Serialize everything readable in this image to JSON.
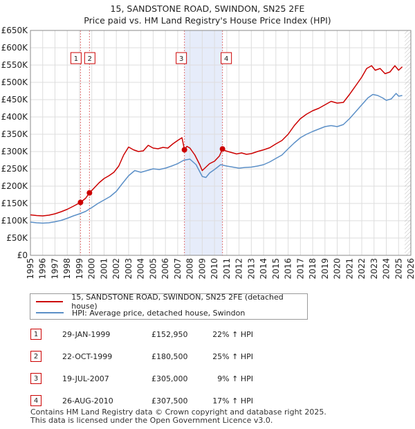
{
  "chart_data": {
    "type": "line",
    "title": "15, SANDSTONE ROAD, SWINDON, SN25 2FE",
    "subtitle": "Price paid vs. HM Land Registry's House Price Index (HPI)",
    "xlim": [
      1995,
      2026
    ],
    "ylim": [
      0,
      650000
    ],
    "x_ticks": [
      "1995",
      "1996",
      "1997",
      "1998",
      "1999",
      "2000",
      "2001",
      "2002",
      "2003",
      "2004",
      "2005",
      "2006",
      "2007",
      "2008",
      "2009",
      "2010",
      "2011",
      "2012",
      "2013",
      "2014",
      "2015",
      "2016",
      "2017",
      "2018",
      "2019",
      "2020",
      "2021",
      "2022",
      "2023",
      "2024",
      "2025",
      "2026"
    ],
    "y_ticks": [
      {
        "value": 0,
        "label": "£0"
      },
      {
        "value": 50000,
        "label": "£50K"
      },
      {
        "value": 100000,
        "label": "£100K"
      },
      {
        "value": 150000,
        "label": "£150K"
      },
      {
        "value": 200000,
        "label": "£200K"
      },
      {
        "value": 250000,
        "label": "£250K"
      },
      {
        "value": 300000,
        "label": "£300K"
      },
      {
        "value": 350000,
        "label": "£350K"
      },
      {
        "value": 400000,
        "label": "£400K"
      },
      {
        "value": 450000,
        "label": "£450K"
      },
      {
        "value": 500000,
        "label": "£500K"
      },
      {
        "value": 550000,
        "label": "£550K"
      },
      {
        "value": 600000,
        "label": "£600K"
      },
      {
        "value": 650000,
        "label": "£650K"
      }
    ],
    "grid": true,
    "shaded_ranges": [
      [
        2007.55,
        2010.65
      ]
    ],
    "hatched_from": 2025.5,
    "series": [
      {
        "name": "15, SANDSTONE ROAD, SWINDON, SN25 2FE (detached house)",
        "color": "#cc0000",
        "points": [
          [
            1995.0,
            117000
          ],
          [
            1995.5,
            115000
          ],
          [
            1996.0,
            114000
          ],
          [
            1996.5,
            116000
          ],
          [
            1997.0,
            120000
          ],
          [
            1997.5,
            126000
          ],
          [
            1998.0,
            133000
          ],
          [
            1998.5,
            142000
          ],
          [
            1999.08,
            152950
          ],
          [
            1999.5,
            165000
          ],
          [
            1999.81,
            180500
          ],
          [
            2000.2,
            195000
          ],
          [
            2000.6,
            210000
          ],
          [
            2001.0,
            222000
          ],
          [
            2001.4,
            230000
          ],
          [
            2001.8,
            240000
          ],
          [
            2002.2,
            258000
          ],
          [
            2002.6,
            290000
          ],
          [
            2003.0,
            313000
          ],
          [
            2003.4,
            305000
          ],
          [
            2003.8,
            300000
          ],
          [
            2004.2,
            302000
          ],
          [
            2004.6,
            318000
          ],
          [
            2005.0,
            310000
          ],
          [
            2005.4,
            308000
          ],
          [
            2005.8,
            312000
          ],
          [
            2006.2,
            310000
          ],
          [
            2006.6,
            322000
          ],
          [
            2007.0,
            332000
          ],
          [
            2007.35,
            340000
          ],
          [
            2007.55,
            305000
          ],
          [
            2007.75,
            315000
          ],
          [
            2008.0,
            310000
          ],
          [
            2008.4,
            290000
          ],
          [
            2008.8,
            262000
          ],
          [
            2009.0,
            245000
          ],
          [
            2009.3,
            255000
          ],
          [
            2009.6,
            265000
          ],
          [
            2010.0,
            272000
          ],
          [
            2010.4,
            287000
          ],
          [
            2010.65,
            307500
          ],
          [
            2010.9,
            302000
          ],
          [
            2011.3,
            298000
          ],
          [
            2011.8,
            293000
          ],
          [
            2012.2,
            296000
          ],
          [
            2012.6,
            292000
          ],
          [
            2013.0,
            294000
          ],
          [
            2013.5,
            300000
          ],
          [
            2014.0,
            305000
          ],
          [
            2014.5,
            311000
          ],
          [
            2015.0,
            322000
          ],
          [
            2015.5,
            332000
          ],
          [
            2016.0,
            350000
          ],
          [
            2016.5,
            375000
          ],
          [
            2017.0,
            395000
          ],
          [
            2017.5,
            408000
          ],
          [
            2018.0,
            418000
          ],
          [
            2018.5,
            425000
          ],
          [
            2019.0,
            435000
          ],
          [
            2019.5,
            445000
          ],
          [
            2020.0,
            440000
          ],
          [
            2020.5,
            442000
          ],
          [
            2021.0,
            465000
          ],
          [
            2021.5,
            490000
          ],
          [
            2022.0,
            515000
          ],
          [
            2022.4,
            540000
          ],
          [
            2022.8,
            548000
          ],
          [
            2023.1,
            535000
          ],
          [
            2023.5,
            540000
          ],
          [
            2023.9,
            525000
          ],
          [
            2024.3,
            530000
          ],
          [
            2024.7,
            548000
          ],
          [
            2025.0,
            535000
          ],
          [
            2025.3,
            545000
          ]
        ]
      },
      {
        "name": "HPI: Average price, detached house, Swindon",
        "color": "#5b8fc7",
        "points": [
          [
            1995.0,
            96000
          ],
          [
            1995.5,
            94000
          ],
          [
            1996.0,
            93000
          ],
          [
            1996.5,
            94000
          ],
          [
            1997.0,
            97000
          ],
          [
            1997.5,
            101000
          ],
          [
            1998.0,
            107000
          ],
          [
            1998.5,
            114000
          ],
          [
            1999.0,
            120000
          ],
          [
            1999.5,
            127000
          ],
          [
            2000.0,
            138000
          ],
          [
            2000.5,
            150000
          ],
          [
            2001.0,
            160000
          ],
          [
            2001.5,
            170000
          ],
          [
            2002.0,
            185000
          ],
          [
            2002.5,
            208000
          ],
          [
            2003.0,
            230000
          ],
          [
            2003.5,
            245000
          ],
          [
            2004.0,
            240000
          ],
          [
            2004.5,
            245000
          ],
          [
            2005.0,
            250000
          ],
          [
            2005.5,
            248000
          ],
          [
            2006.0,
            252000
          ],
          [
            2006.5,
            258000
          ],
          [
            2007.0,
            265000
          ],
          [
            2007.5,
            275000
          ],
          [
            2008.0,
            278000
          ],
          [
            2008.5,
            262000
          ],
          [
            2009.0,
            228000
          ],
          [
            2009.3,
            225000
          ],
          [
            2009.6,
            238000
          ],
          [
            2010.0,
            248000
          ],
          [
            2010.5,
            262000
          ],
          [
            2011.0,
            258000
          ],
          [
            2011.5,
            255000
          ],
          [
            2012.0,
            252000
          ],
          [
            2012.5,
            254000
          ],
          [
            2013.0,
            255000
          ],
          [
            2013.5,
            258000
          ],
          [
            2014.0,
            262000
          ],
          [
            2014.5,
            270000
          ],
          [
            2015.0,
            280000
          ],
          [
            2015.5,
            290000
          ],
          [
            2016.0,
            308000
          ],
          [
            2016.5,
            325000
          ],
          [
            2017.0,
            340000
          ],
          [
            2017.5,
            350000
          ],
          [
            2018.0,
            358000
          ],
          [
            2018.5,
            365000
          ],
          [
            2019.0,
            372000
          ],
          [
            2019.5,
            375000
          ],
          [
            2020.0,
            372000
          ],
          [
            2020.5,
            378000
          ],
          [
            2021.0,
            395000
          ],
          [
            2021.5,
            415000
          ],
          [
            2022.0,
            435000
          ],
          [
            2022.5,
            455000
          ],
          [
            2022.9,
            465000
          ],
          [
            2023.3,
            462000
          ],
          [
            2023.7,
            455000
          ],
          [
            2024.0,
            448000
          ],
          [
            2024.4,
            452000
          ],
          [
            2024.8,
            468000
          ],
          [
            2025.0,
            460000
          ],
          [
            2025.3,
            462000
          ]
        ]
      }
    ],
    "sales": [
      {
        "num": "1",
        "date": "29-JAN-1999",
        "price": "£152,950",
        "hpi": "22% ↑ HPI",
        "x": 1999.08,
        "y": 152950
      },
      {
        "num": "2",
        "date": "22-OCT-1999",
        "price": "£180,500",
        "hpi": "25% ↑ HPI",
        "x": 1999.81,
        "y": 180500
      },
      {
        "num": "3",
        "date": "19-JUL-2007",
        "price": "£305,000",
        "hpi": "9% ↑ HPI",
        "x": 2007.55,
        "y": 305000
      },
      {
        "num": "4",
        "date": "26-AUG-2010",
        "price": "£307,500",
        "hpi": "17% ↑ HPI",
        "x": 2010.65,
        "y": 307500
      }
    ]
  },
  "legend": {
    "property_label": "15, SANDSTONE ROAD, SWINDON, SN25 2FE (detached house)",
    "hpi_label": "HPI: Average price, detached house, Swindon"
  },
  "footer": {
    "line1": "Contains HM Land Registry data © Crown copyright and database right 2025.",
    "line2": "This data is licensed under the Open Government Licence v3.0."
  }
}
